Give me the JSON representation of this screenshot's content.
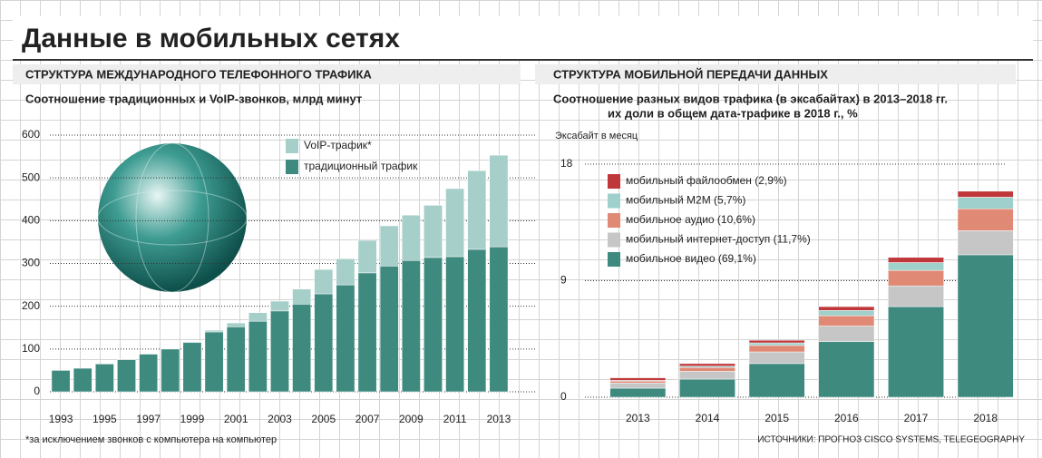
{
  "title": "Данные в мобильных сетях",
  "chart_data": [
    {
      "type": "bar",
      "stacked": true,
      "title": "СТРУКТУРА МЕЖДУНАРОДНОГО ТЕЛЕФОННОГО ТРАФИКА",
      "subtitle": [
        "Соотношение традиционных и VoIP-звонков, млрд минут"
      ],
      "categories": [
        "1993",
        null,
        "1995",
        null,
        "1997",
        null,
        "1999",
        null,
        "2001",
        null,
        "2003",
        null,
        "2005",
        null,
        "2007",
        null,
        "2009",
        null,
        "2011",
        null,
        "2013"
      ],
      "series": [
        {
          "name": "традиционный трафик",
          "color": "#3f8a7f",
          "values": [
            50,
            55,
            65,
            75,
            88,
            100,
            115,
            140,
            152,
            165,
            189,
            205,
            229,
            250,
            278,
            294,
            307,
            314,
            316,
            333,
            339
          ]
        },
        {
          "name": "VoIP-трафик*",
          "color": "#a6cfca",
          "values": [
            0,
            0,
            0,
            0,
            0,
            1,
            2,
            4,
            9,
            20,
            23,
            35,
            57,
            61,
            76,
            94,
            106,
            122,
            159,
            184,
            214
          ]
        }
      ],
      "ylim": [
        0,
        600
      ],
      "yticks": [
        0,
        100,
        200,
        300,
        400,
        500,
        600
      ],
      "grid": true
    },
    {
      "type": "bar",
      "stacked": true,
      "title": "СТРУКТУРА МОБИЛЬНОЙ ПЕРЕДАЧИ ДАННЫХ",
      "subtitle": [
        "Соотношение разных видов трафика (в эксабайтах) в 2013–2018 гг.",
        "их доли в общем дата-трафике в 2018 г., %"
      ],
      "y_label": "Эксабайт в месяц",
      "categories": [
        "2013",
        "2014",
        "2015",
        "2016",
        "2017",
        "2018"
      ],
      "series": [
        {
          "name": "мобильное видео (69,1%)",
          "color": "#3f8a7f",
          "values": [
            0.7,
            1.4,
            2.6,
            4.3,
            7.0,
            11.0
          ]
        },
        {
          "name": "мобильный интернет-доступ (11,7%)",
          "color": "#c6c6c6",
          "values": [
            0.4,
            0.6,
            0.9,
            1.2,
            1.6,
            1.86
          ]
        },
        {
          "name": "мобильное аудио (10,6%)",
          "color": "#e08a76",
          "values": [
            0.15,
            0.3,
            0.5,
            0.8,
            1.2,
            1.69
          ]
        },
        {
          "name": "мобильный M2M (5,7%)",
          "color": "#9fd0cb",
          "values": [
            0.05,
            0.1,
            0.2,
            0.4,
            0.6,
            0.9
          ]
        },
        {
          "name": "мобильный файлообмен (2,9%)",
          "color": "#c0373a",
          "values": [
            0.2,
            0.2,
            0.2,
            0.3,
            0.4,
            0.46
          ]
        }
      ],
      "ylim": [
        0,
        18
      ],
      "yticks": [
        0,
        9,
        18
      ],
      "grid": true
    }
  ],
  "footnote": "*за исключением звонков с компьютера на компьютер",
  "source": "ИСТОЧНИКИ: ПРОГНОЗ CISCO SYSTEMS, TELEGEOGRAPHY"
}
